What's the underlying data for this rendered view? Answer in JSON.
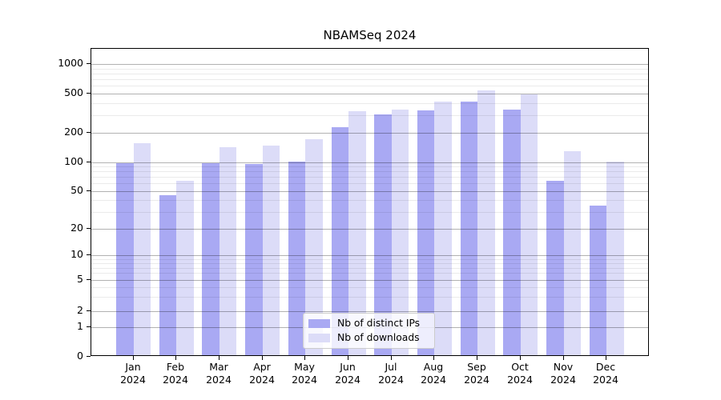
{
  "title": "NBAMSeq 2024",
  "colors": {
    "ips_bar": "#a9a9f3",
    "downloads_bar": "#dcdcf8",
    "grid_major": "rgba(0,0,0,0.30)",
    "grid_minor": "rgba(0,0,0,0.08)",
    "spine": "#000000",
    "legend_border": "#cccccc"
  },
  "chart_data": {
    "type": "bar",
    "title": "NBAMSeq 2024",
    "categories": [
      "Jan 2024",
      "Feb 2024",
      "Mar 2024",
      "Apr 2024",
      "May 2024",
      "Jun 2024",
      "Jul 2024",
      "Aug 2024",
      "Sep 2024",
      "Oct 2024",
      "Nov 2024",
      "Dec 2024"
    ],
    "series": [
      {
        "name": "Nb of distinct IPs",
        "color": "#a9a9f3",
        "values": [
          96,
          44,
          96,
          94,
          100,
          224,
          298,
          331,
          408,
          338,
          62,
          34
        ]
      },
      {
        "name": "Nb of downloads",
        "color": "#dcdcf8",
        "values": [
          152,
          62,
          139,
          143,
          168,
          325,
          338,
          405,
          525,
          480,
          127,
          100
        ]
      }
    ],
    "xlabel": "",
    "ylabel": "",
    "yticks": [
      0,
      1,
      2,
      5,
      10,
      20,
      50,
      100,
      200,
      500,
      1000
    ],
    "y_scale": "log-like (custom ticks 0,1,2,5,10,20,50,100,200,500,1000)",
    "grid": true,
    "legend_position": "lower center"
  }
}
